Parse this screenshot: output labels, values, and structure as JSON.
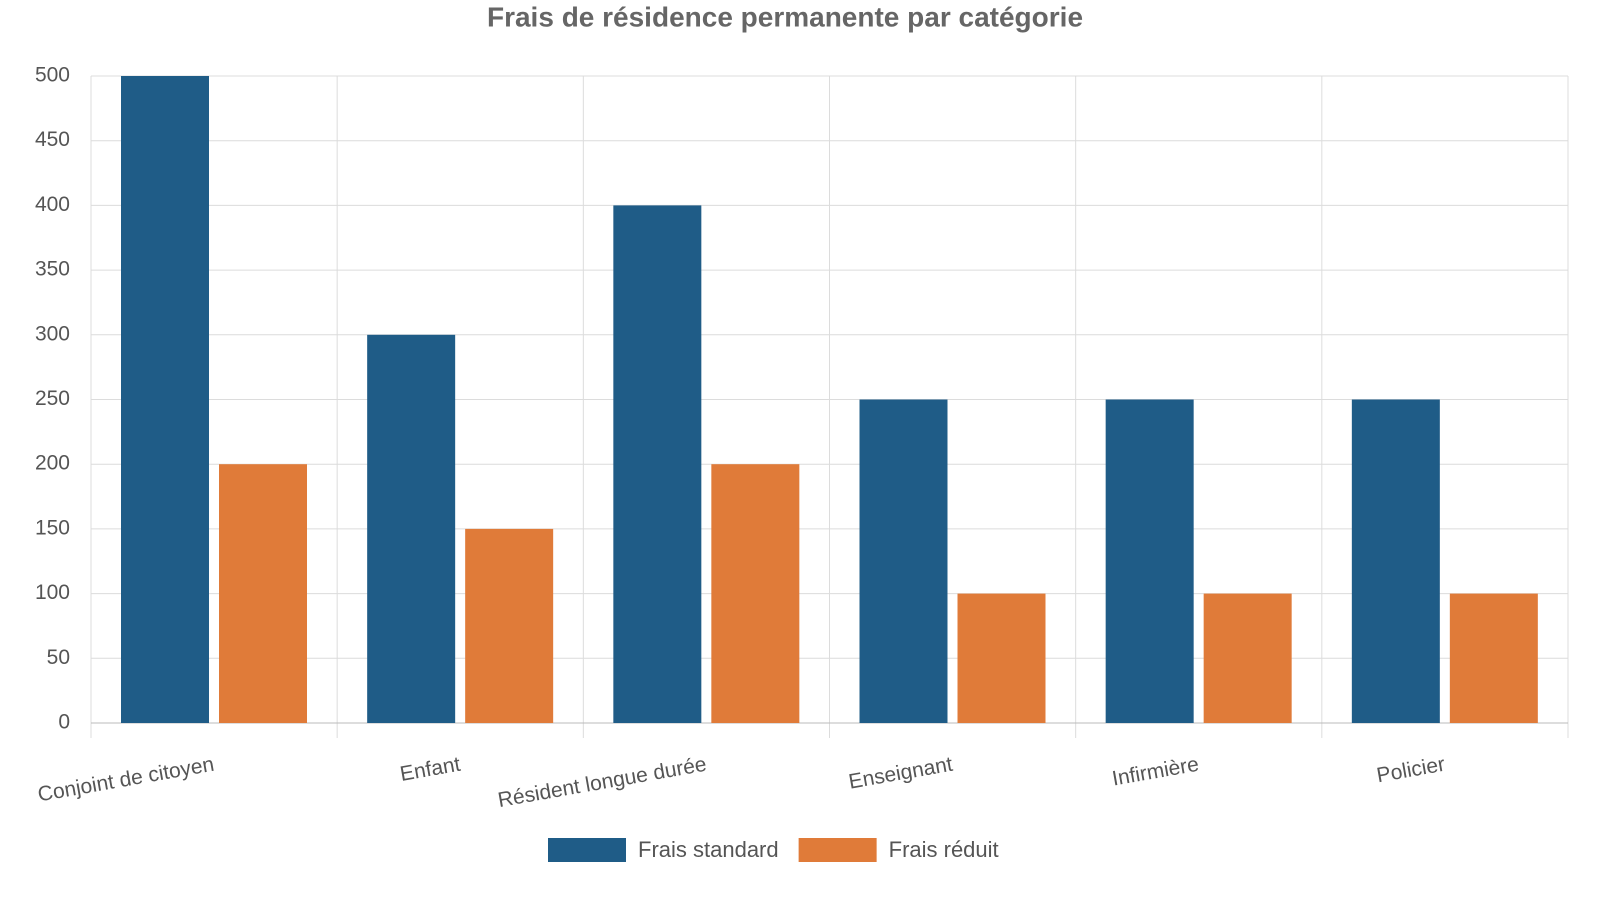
{
  "chart_data": {
    "type": "bar",
    "title": "Frais de résidence permanente par catégorie",
    "categories": [
      "Conjoint de citoyen",
      "Enfant",
      "Résident longue durée",
      "Enseignant",
      "Infirmière",
      "Policier"
    ],
    "series": [
      {
        "name": "Frais standard",
        "color": "#1f5c87",
        "values": [
          500,
          300,
          400,
          250,
          250,
          250
        ]
      },
      {
        "name": "Frais réduit",
        "color": "#e07b39",
        "values": [
          200,
          150,
          200,
          100,
          100,
          100
        ]
      }
    ],
    "ylim": [
      0,
      500
    ],
    "yticks": [
      0,
      50,
      100,
      150,
      200,
      250,
      300,
      350,
      400,
      450,
      500
    ],
    "grid": true,
    "legend": "bottom"
  }
}
